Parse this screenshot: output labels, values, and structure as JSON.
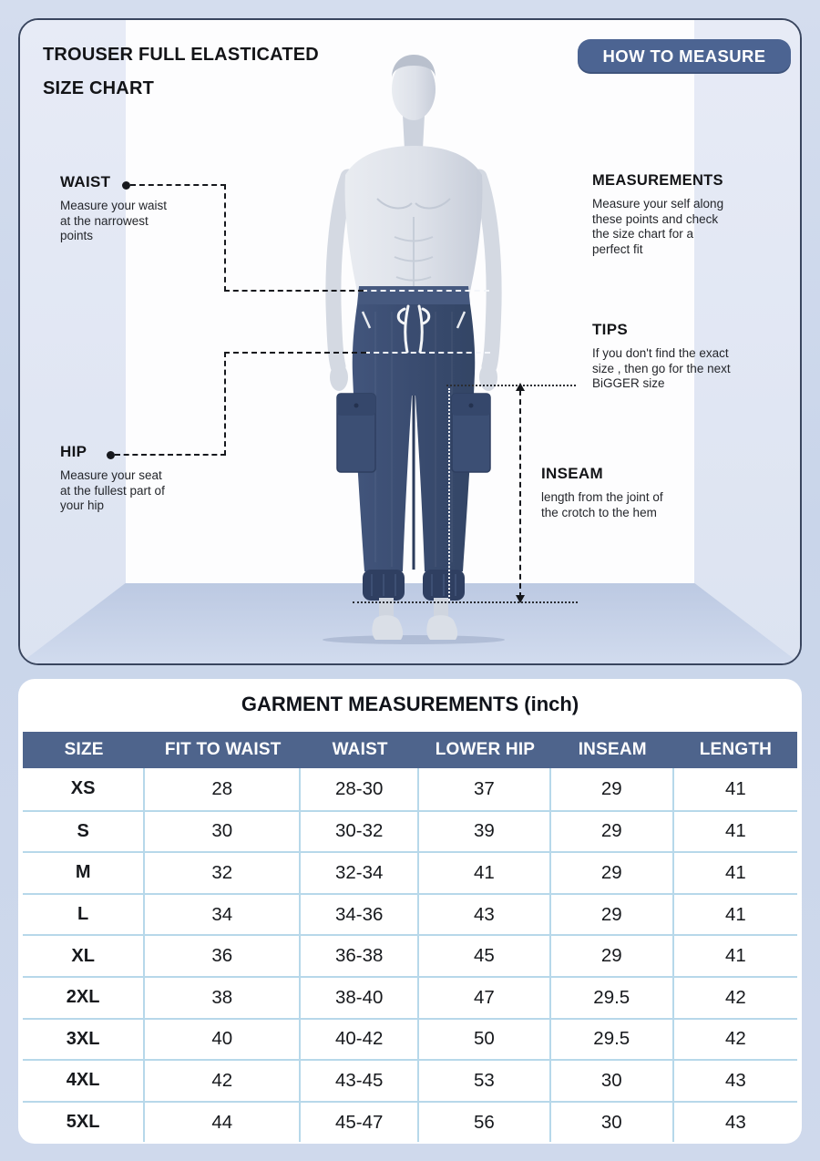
{
  "top_card": {
    "title_line1": "TROUSER FULL ELASTICATED",
    "title_line2": "SIZE CHART",
    "how_to_measure_label": "HOW TO MEASURE",
    "waist": {
      "heading": "WAIST",
      "body": "Measure your waist\nat the narrowest\npoints"
    },
    "measurements": {
      "heading": "MEASUREMENTS",
      "body": "Measure your self along\nthese points and check\nthe size chart for a\nperfect fit"
    },
    "tips": {
      "heading": "TIPS",
      "body": "If you don't find the exact\nsize , then go for the next\nBiGGER size"
    },
    "hip": {
      "heading": "HIP",
      "body": "Measure your seat\nat the fullest part of\nyour hip"
    },
    "inseam": {
      "heading": "INSEAM",
      "body": "length from the joint of\nthe crotch to the hem"
    }
  },
  "table": {
    "title": "GARMENT MEASUREMENTS (inch)",
    "unit": "inch",
    "columns": [
      "SIZE",
      "FIT TO WAIST",
      "WAIST",
      "LOWER HIP",
      "INSEAM",
      "LENGTH"
    ],
    "rows": [
      [
        "XS",
        "28",
        "28-30",
        "37",
        "29",
        "41"
      ],
      [
        "S",
        "30",
        "30-32",
        "39",
        "29",
        "41"
      ],
      [
        "M",
        "32",
        "32-34",
        "41",
        "29",
        "41"
      ],
      [
        "L",
        "34",
        "34-36",
        "43",
        "29",
        "41"
      ],
      [
        "XL",
        "36",
        "36-38",
        "45",
        "29",
        "41"
      ],
      [
        "2XL",
        "38",
        "38-40",
        "47",
        "29.5",
        "42"
      ],
      [
        "3XL",
        "40",
        "40-42",
        "50",
        "29.5",
        "42"
      ],
      [
        "4XL",
        "42",
        "43-45",
        "53",
        "30",
        "43"
      ],
      [
        "5XL",
        "44",
        "45-47",
        "56",
        "30",
        "43"
      ]
    ]
  },
  "colors": {
    "accent_slate": "#4c6492",
    "table_header": "#4e648c",
    "grid_line": "#b7d8ea",
    "trouser_navy": "#3a4c70",
    "page_background": "#ccd7eb"
  }
}
